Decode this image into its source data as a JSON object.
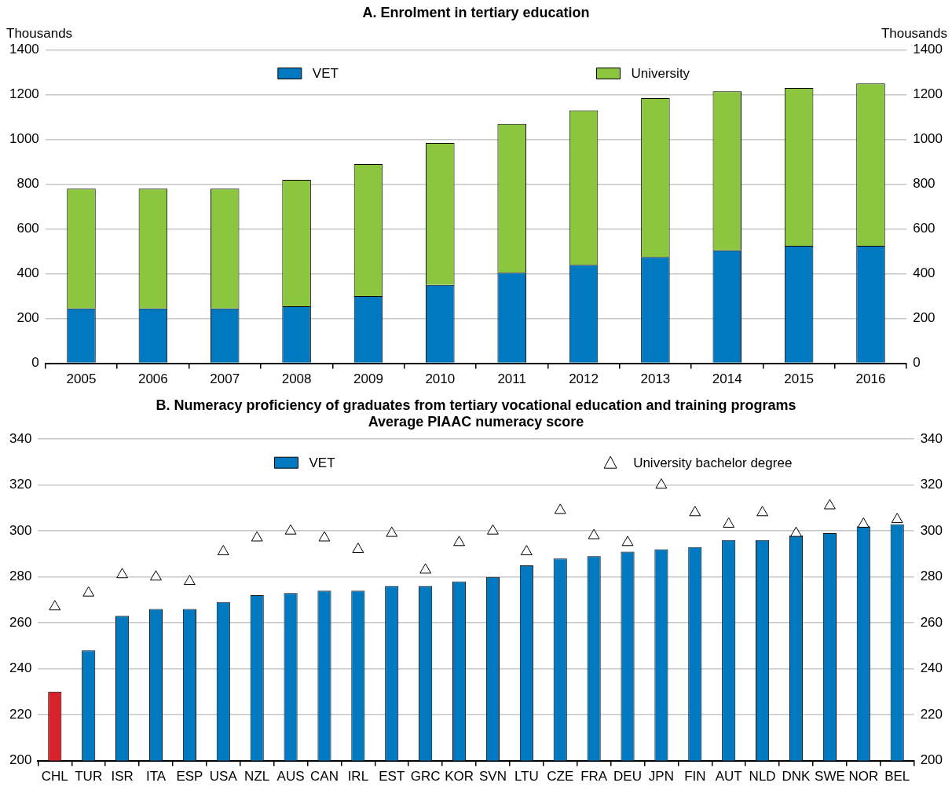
{
  "chart_data": [
    {
      "type": "bar",
      "title": "A. Enrolment in tertiary education",
      "ylabel": "Thousands",
      "y2label": "Thousands",
      "categories": [
        "2005",
        "2006",
        "2007",
        "2008",
        "2009",
        "2010",
        "2011",
        "2012",
        "2013",
        "2014",
        "2015",
        "2016"
      ],
      "stacked": true,
      "series": [
        {
          "name": "VET",
          "color": "#0079c1",
          "values": [
            245,
            245,
            245,
            255,
            300,
            350,
            405,
            440,
            475,
            505,
            525,
            525
          ]
        },
        {
          "name": "University",
          "color": "#8cc63f",
          "values": [
            535,
            535,
            535,
            565,
            590,
            635,
            665,
            690,
            710,
            710,
            705,
            725
          ]
        }
      ],
      "ylim": [
        0,
        1400
      ],
      "yticks": [
        0,
        200,
        400,
        600,
        800,
        1000,
        1200,
        1400
      ],
      "y2lim": [
        0,
        1400
      ],
      "y2ticks": [
        0,
        200,
        400,
        600,
        800,
        1000,
        1200,
        1400
      ],
      "grid": "y",
      "legend": "top"
    },
    {
      "type": "bar",
      "title": "B. Numeracy proficiency of graduates from tertiary vocational education and training programs",
      "subtitle": "Average PIAAC numeracy score",
      "categories": [
        "CHL",
        "TUR",
        "ISR",
        "ITA",
        "ESP",
        "USA",
        "NZL",
        "AUS",
        "CAN",
        "IRL",
        "EST",
        "GRC",
        "KOR",
        "SVN",
        "LTU",
        "CZE",
        "FRA",
        "DEU",
        "JPN",
        "FIN",
        "AUT",
        "NLD",
        "DNK",
        "SWE",
        "NOR",
        "BEL"
      ],
      "series": [
        {
          "name": "VET",
          "color": "#0079c1",
          "colors": [
            "#d7222a",
            "#0079c1",
            "#0079c1",
            "#0079c1",
            "#0079c1",
            "#0079c1",
            "#0079c1",
            "#0079c1",
            "#0079c1",
            "#0079c1",
            "#0079c1",
            "#0079c1",
            "#0079c1",
            "#0079c1",
            "#0079c1",
            "#0079c1",
            "#0079c1",
            "#0079c1",
            "#0079c1",
            "#0079c1",
            "#0079c1",
            "#0079c1",
            "#0079c1",
            "#0079c1",
            "#0079c1",
            "#0079c1"
          ],
          "values": [
            230,
            248,
            263,
            266,
            266,
            269,
            272,
            273,
            274,
            274,
            276,
            276,
            278,
            280,
            285,
            288,
            289,
            291,
            292,
            293,
            296,
            296,
            298,
            299,
            302,
            303
          ]
        },
        {
          "name": "University bachelor degree",
          "type": "scatter",
          "marker": "triangle",
          "color": "#000000",
          "values": [
            267,
            273,
            281,
            280,
            278,
            291,
            297,
            300,
            297,
            292,
            299,
            283,
            295,
            300,
            291,
            309,
            298,
            295,
            320,
            308,
            303,
            308,
            299,
            311,
            303,
            305
          ]
        }
      ],
      "ylim": [
        200,
        340
      ],
      "yticks": [
        200,
        220,
        240,
        260,
        280,
        300,
        320,
        340
      ],
      "y2lim": [
        200,
        340
      ],
      "y2ticks": [
        200,
        220,
        240,
        260,
        280,
        300,
        320,
        340
      ],
      "grid": "y",
      "legend": "top"
    }
  ]
}
